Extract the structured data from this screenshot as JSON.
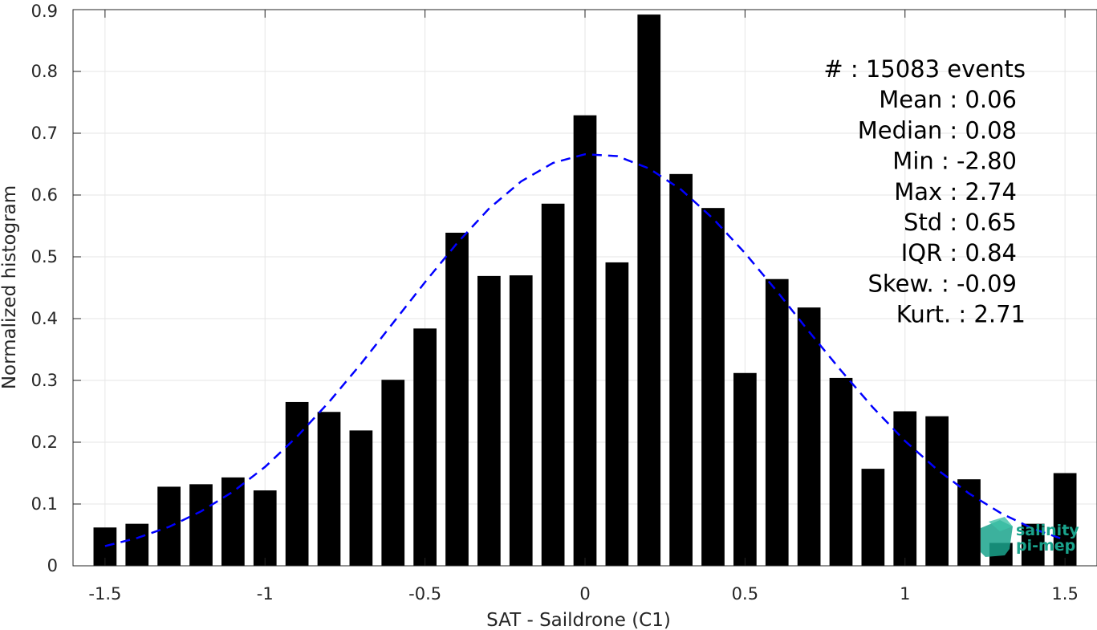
{
  "chart_data": {
    "type": "bar",
    "xlabel": "SAT - Saildrone (C1)",
    "ylabel": "Normalized histogram",
    "xlim": [
      -1.6,
      1.6
    ],
    "ylim": [
      0,
      0.9
    ],
    "grid": true,
    "x": [
      -1.5,
      -1.4,
      -1.3,
      -1.2,
      -1.1,
      -1.0,
      -0.9,
      -0.8,
      -0.7,
      -0.6,
      -0.5,
      -0.4,
      -0.3,
      -0.2,
      -0.1,
      0.0,
      0.1,
      0.2,
      0.3,
      0.4,
      0.5,
      0.6,
      0.7,
      0.8,
      0.9,
      1.0,
      1.1,
      1.2,
      1.3,
      1.4,
      1.5
    ],
    "values": [
      0.062,
      0.068,
      0.128,
      0.132,
      0.143,
      0.122,
      0.265,
      0.249,
      0.219,
      0.301,
      0.384,
      0.539,
      0.469,
      0.47,
      0.586,
      0.729,
      0.491,
      0.892,
      0.634,
      0.579,
      0.312,
      0.464,
      0.418,
      0.304,
      0.157,
      0.25,
      0.242,
      0.14,
      0.037,
      0.068,
      0.15
    ],
    "bar_color": "#000000",
    "fit_curve": {
      "style": "dashed",
      "color": "#0000ff",
      "x": [
        -1.5,
        -1.4,
        -1.3,
        -1.2,
        -1.1,
        -1.0,
        -0.9,
        -0.8,
        -0.7,
        -0.6,
        -0.5,
        -0.4,
        -0.3,
        -0.2,
        -0.1,
        0.0,
        0.1,
        0.2,
        0.3,
        0.4,
        0.5,
        0.6,
        0.7,
        0.8,
        0.9,
        1.0,
        1.1,
        1.2,
        1.3,
        1.4,
        1.5
      ],
      "y": [
        0.032,
        0.045,
        0.063,
        0.088,
        0.12,
        0.16,
        0.209,
        0.265,
        0.327,
        0.393,
        0.459,
        0.522,
        0.578,
        0.622,
        0.652,
        0.666,
        0.663,
        0.643,
        0.609,
        0.562,
        0.506,
        0.444,
        0.379,
        0.316,
        0.256,
        0.202,
        0.156,
        0.117,
        0.085,
        0.06,
        0.042
      ]
    },
    "xticks": [
      "-1.5",
      "-1",
      "-0.5",
      "0",
      "0.5",
      "1",
      "1.5"
    ],
    "xtick_values": [
      -1.5,
      -1,
      -0.5,
      0,
      0.5,
      1,
      1.5
    ],
    "yticks": [
      "0",
      "0.1",
      "0.2",
      "0.3",
      "0.4",
      "0.5",
      "0.6",
      "0.7",
      "0.8",
      "0.9"
    ],
    "ytick_values": [
      0,
      0.1,
      0.2,
      0.3,
      0.4,
      0.5,
      0.6,
      0.7,
      0.8,
      0.9
    ],
    "stats": [
      "#  : 15083 events",
      "Mean : 0.06",
      "Median : 0.08",
      "Min : -2.80",
      "Max : 2.74",
      "Std : 0.65",
      "IQR : 0.84",
      "Skew. : -0.09",
      "Kurt. : 2.71"
    ]
  },
  "logo": {
    "line1": "salinity",
    "line2": "pi-mep",
    "color": "#1aa38c"
  }
}
